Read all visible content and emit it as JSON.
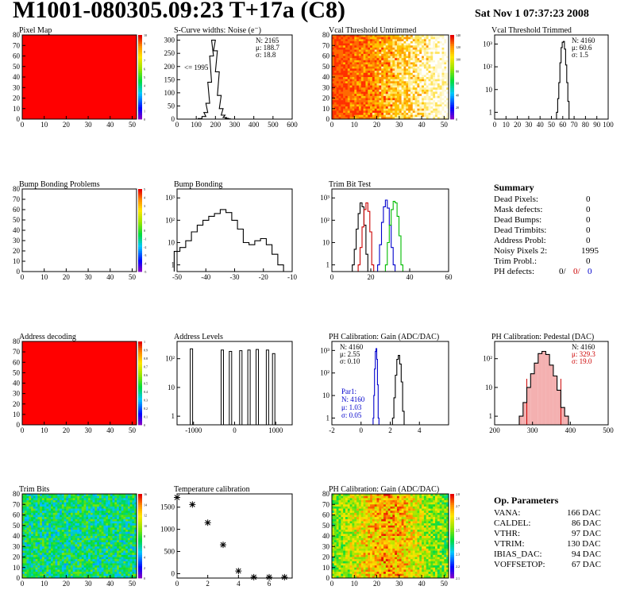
{
  "header": {
    "title": "M1001-080305.09:23 T+17a (C8)",
    "date": "Sat Nov  1 07:37:23 2008"
  },
  "colors": {
    "black": "#000000",
    "red": "#cc0000",
    "blue": "#0000cc",
    "green": "#00bb00"
  },
  "chart_data": [
    {
      "id": "pixel-map",
      "type": "heatmap",
      "title": "Pixel Map",
      "xlim": [
        0,
        52
      ],
      "ylim": [
        0,
        80
      ],
      "xticks": [
        "0",
        "10",
        "20",
        "30",
        "40",
        "50"
      ],
      "yticks": [
        "0",
        "10",
        "20",
        "30",
        "40",
        "50",
        "60",
        "70",
        "80"
      ],
      "fill": "uniform-red",
      "zlim": [
        0,
        10
      ],
      "zticks": [
        "0",
        "1",
        "2",
        "3",
        "4",
        "5",
        "6",
        "7",
        "8",
        "9",
        "10"
      ]
    },
    {
      "id": "scurve",
      "type": "histogram",
      "title": "S-Curve widths: Noise (e⁻)",
      "xlim": [
        0,
        600
      ],
      "ylim": [
        0,
        320
      ],
      "xticks": [
        "0",
        "100",
        "200",
        "300",
        "400",
        "500",
        "600"
      ],
      "yticks": [
        "0",
        "50",
        "100",
        "150",
        "200",
        "250",
        "300"
      ],
      "stats": [
        [
          "N:",
          "2165"
        ],
        [
          "μ:",
          "188.7"
        ],
        [
          "σ:",
          "18.8"
        ]
      ],
      "annotation": "<= 1995",
      "x": [
        120,
        140,
        150,
        160,
        170,
        180,
        190,
        200,
        210,
        220,
        230,
        240,
        250,
        260,
        270,
        280,
        290
      ],
      "values": [
        2,
        10,
        25,
        60,
        140,
        240,
        300,
        260,
        180,
        90,
        40,
        15,
        6,
        3,
        1,
        0,
        0
      ]
    },
    {
      "id": "vcal-untrimmed",
      "type": "heatmap",
      "title": "Vcal Threshold Untrimmed",
      "xlim": [
        0,
        52
      ],
      "ylim": [
        0,
        80
      ],
      "xticks": [
        "0",
        "10",
        "20",
        "30",
        "40",
        "50"
      ],
      "yticks": [
        "0",
        "10",
        "20",
        "30",
        "40",
        "50",
        "60",
        "70",
        "80"
      ],
      "fill": "gradient-red-to-white",
      "zlim": [
        0,
        140
      ],
      "zticks": [
        "0",
        "20",
        "40",
        "60",
        "80",
        "100",
        "120",
        "140"
      ]
    },
    {
      "id": "vcal-trimmed",
      "type": "histogram",
      "title": "Vcal Threshold Trimmed",
      "xlim": [
        0,
        100
      ],
      "logy": true,
      "xticks": [
        "0",
        "10",
        "20",
        "30",
        "40",
        "50",
        "60",
        "70",
        "80",
        "90",
        "100"
      ],
      "yticks": [
        "1",
        "10",
        "10²",
        "10³"
      ],
      "stats": [
        [
          "N:",
          "4160"
        ],
        [
          "μ:",
          "60.6"
        ],
        [
          "σ:",
          "1.5"
        ]
      ],
      "x": [
        55,
        56,
        57,
        58,
        59,
        60,
        61,
        62,
        63,
        64,
        65,
        66
      ],
      "values": [
        1,
        4,
        20,
        150,
        700,
        1200,
        1300,
        600,
        120,
        20,
        3,
        0
      ]
    },
    {
      "id": "bump-problems",
      "type": "heatmap",
      "title": "Bump Bonding Problems",
      "xlim": [
        0,
        52
      ],
      "ylim": [
        0,
        80
      ],
      "xticks": [
        "0",
        "10",
        "20",
        "30",
        "40",
        "50"
      ],
      "yticks": [
        "0",
        "10",
        "20",
        "30",
        "40",
        "50",
        "60",
        "70",
        "80"
      ],
      "fill": "empty",
      "zlim": [
        -5,
        5
      ],
      "zticks": [
        "-5",
        "-4",
        "-3",
        "-2",
        "-1",
        "0",
        "1",
        "2",
        "3",
        "4",
        "5"
      ]
    },
    {
      "id": "bump-bonding",
      "type": "histogram",
      "title": "Bump Bonding",
      "xlim": [
        -50,
        -10
      ],
      "logy": true,
      "xticks": [
        "-50",
        "-40",
        "-30",
        "-20",
        "-10"
      ],
      "yticks": [
        "1",
        "10",
        "10²",
        "10³"
      ],
      "x": [
        -50,
        -48,
        -46,
        -44,
        -42,
        -40,
        -38,
        -36,
        -34,
        -32,
        -30,
        -28,
        -26,
        -24,
        -22,
        -20,
        -18,
        -16,
        -14
      ],
      "values": [
        4,
        6,
        12,
        30,
        60,
        100,
        150,
        200,
        300,
        220,
        100,
        40,
        10,
        8,
        12,
        15,
        8,
        3,
        1
      ]
    },
    {
      "id": "trim-bit-test",
      "type": "histogram",
      "title": "Trim Bit Test",
      "xlim": [
        0,
        60
      ],
      "logy": true,
      "xticks": [
        "0",
        "20",
        "40",
        "60"
      ],
      "yticks": [
        "1",
        "10",
        "10²",
        "10³"
      ],
      "series": [
        {
          "color": "black",
          "x": [
            11,
            12,
            13,
            14,
            15,
            16,
            17,
            18
          ],
          "values": [
            1,
            5,
            40,
            200,
            600,
            400,
            60,
            3
          ]
        },
        {
          "color": "red",
          "x": [
            14,
            15,
            16,
            17,
            18,
            19,
            20,
            21
          ],
          "values": [
            1,
            6,
            50,
            300,
            600,
            250,
            30,
            1
          ]
        },
        {
          "color": "blue",
          "x": [
            24,
            25,
            26,
            27,
            28,
            29,
            30,
            31,
            32
          ],
          "values": [
            1,
            8,
            80,
            400,
            800,
            350,
            60,
            6,
            1
          ]
        },
        {
          "color": "green",
          "x": [
            28,
            29,
            30,
            31,
            32,
            33,
            34,
            35,
            36
          ],
          "values": [
            1,
            10,
            60,
            300,
            700,
            600,
            150,
            20,
            1
          ]
        }
      ]
    },
    {
      "id": "address-decoding",
      "type": "heatmap",
      "title": "Address decoding",
      "xlim": [
        0,
        52
      ],
      "ylim": [
        0,
        80
      ],
      "xticks": [
        "0",
        "10",
        "20",
        "30",
        "40",
        "50"
      ],
      "yticks": [
        "0",
        "10",
        "20",
        "30",
        "40",
        "50",
        "60",
        "70",
        "80"
      ],
      "fill": "uniform-red",
      "zlim": [
        0,
        1
      ],
      "zticks": [
        "0",
        "0.1",
        "0.2",
        "0.3",
        "0.4",
        "0.5",
        "0.6",
        "0.7",
        "0.8",
        "0.9",
        "1"
      ]
    },
    {
      "id": "address-levels",
      "type": "histogram",
      "title": "Address Levels",
      "xlim": [
        -1400,
        1400
      ],
      "logy": true,
      "xticks": [
        "-1000",
        "0",
        "1000"
      ],
      "yticks": [
        "1",
        "10",
        "10²"
      ],
      "x": [
        -1050,
        -300,
        -100,
        150,
        350,
        550,
        800,
        950
      ],
      "values": [
        220,
        200,
        180,
        190,
        200,
        210,
        200,
        150
      ]
    },
    {
      "id": "ph-gain",
      "type": "histogram",
      "title": "PH Calibration: Gain (ADC/DAC)",
      "xlim": [
        -2,
        6
      ],
      "logy": true,
      "xticks": [
        "-2",
        "0",
        "2",
        "4"
      ],
      "yticks": [
        "1",
        "10",
        "10²",
        "10³"
      ],
      "stats": [
        [
          "N:",
          "4160"
        ],
        [
          "μ:",
          "2.55"
        ],
        [
          "σ:",
          "0.10"
        ]
      ],
      "stats2_title": "Par1:",
      "stats2": [
        [
          "N:",
          "4160"
        ],
        [
          "μ:",
          "1.03"
        ],
        [
          "σ:",
          "0.05"
        ]
      ],
      "series": [
        {
          "color": "black",
          "x": [
            2.2,
            2.3,
            2.4,
            2.5,
            2.6,
            2.7,
            2.8,
            2.9
          ],
          "values": [
            1,
            8,
            80,
            400,
            600,
            250,
            40,
            2
          ]
        },
        {
          "color": "blue",
          "x": [
            0.85,
            0.9,
            0.95,
            1.0,
            1.05,
            1.1,
            1.15,
            1.2
          ],
          "values": [
            1,
            10,
            150,
            900,
            1200,
            400,
            30,
            1
          ]
        }
      ]
    },
    {
      "id": "ph-pedestal",
      "type": "histogram",
      "title": "PH Calibration: Pedestal (DAC)",
      "xlim": [
        200,
        500
      ],
      "logy": true,
      "xticks": [
        "200",
        "300",
        "400",
        "500"
      ],
      "yticks": [
        "1",
        "10",
        "10²"
      ],
      "stats": [
        [
          "N:",
          "4160"
        ],
        [
          "μ:",
          "329.3"
        ],
        [
          "σ:",
          "19.0"
        ]
      ],
      "x": [
        270,
        280,
        290,
        300,
        310,
        320,
        330,
        340,
        350,
        360,
        370,
        380,
        390
      ],
      "values": [
        1,
        3,
        10,
        30,
        70,
        150,
        180,
        140,
        60,
        25,
        8,
        2,
        1
      ]
    },
    {
      "id": "trim-bits",
      "type": "heatmap",
      "title": "Trim Bits",
      "xlim": [
        0,
        52
      ],
      "ylim": [
        0,
        80
      ],
      "xticks": [
        "0",
        "10",
        "20",
        "30",
        "40",
        "50"
      ],
      "yticks": [
        "0",
        "10",
        "20",
        "30",
        "40",
        "50",
        "60",
        "70",
        "80"
      ],
      "fill": "noise-green",
      "zlim": [
        0,
        16
      ],
      "zticks": [
        "0",
        "2",
        "4",
        "6",
        "8",
        "10",
        "12",
        "14",
        "16"
      ]
    },
    {
      "id": "temperature",
      "type": "scatter",
      "title": "Temperature calibration",
      "xlim": [
        0,
        7.5
      ],
      "ylim": [
        -100,
        1800
      ],
      "xticks": [
        "0",
        "2",
        "4",
        "6"
      ],
      "yticks": [
        "0",
        "500",
        "1000",
        "1500"
      ],
      "x": [
        0,
        1,
        2,
        3,
        4,
        5,
        6,
        7
      ],
      "y": [
        1720,
        1560,
        1150,
        650,
        60,
        -80,
        -80,
        -80
      ]
    },
    {
      "id": "ph-gain-map",
      "type": "heatmap",
      "title": "PH Calibration: Gain (ADC/DAC)",
      "xlim": [
        0,
        52
      ],
      "ylim": [
        0,
        80
      ],
      "xticks": [
        "0",
        "10",
        "20",
        "30",
        "40",
        "50"
      ],
      "yticks": [
        "0",
        "10",
        "20",
        "30",
        "40",
        "50",
        "60",
        "70",
        "80"
      ],
      "fill": "noise-warm",
      "zlim": [
        2.1,
        2.8
      ],
      "zticks": [
        "2.1",
        "2.2",
        "2.3",
        "2.4",
        "2.5",
        "2.6",
        "2.7",
        "2.8"
      ]
    }
  ],
  "summary": {
    "title": "Summary",
    "rows": [
      {
        "label": "Dead Pixels:",
        "value": "0"
      },
      {
        "label": "Mask defects:",
        "value": "0"
      },
      {
        "label": "Dead Bumps:",
        "value": "0"
      },
      {
        "label": "Dead Trimbits:",
        "value": "0"
      },
      {
        "label": "Address Probl:",
        "value": "0"
      },
      {
        "label": "Noisy Pixels 2:",
        "value": "1995"
      },
      {
        "label": "Trim Probl.:",
        "value": "0"
      }
    ],
    "ph_label": "PH defects:",
    "ph_values": [
      "0/",
      "0/",
      "0"
    ]
  },
  "params": {
    "title": "Op. Parameters",
    "rows": [
      {
        "label": "VANA:",
        "value": "166 DAC"
      },
      {
        "label": "CALDEL:",
        "value": "86 DAC"
      },
      {
        "label": "VTHR:",
        "value": "97 DAC"
      },
      {
        "label": "VTRIM:",
        "value": "130 DAC"
      },
      {
        "label": "IBIAS_DAC:",
        "value": "94 DAC"
      },
      {
        "label": "VOFFSETOP:",
        "value": "67 DAC"
      }
    ]
  }
}
